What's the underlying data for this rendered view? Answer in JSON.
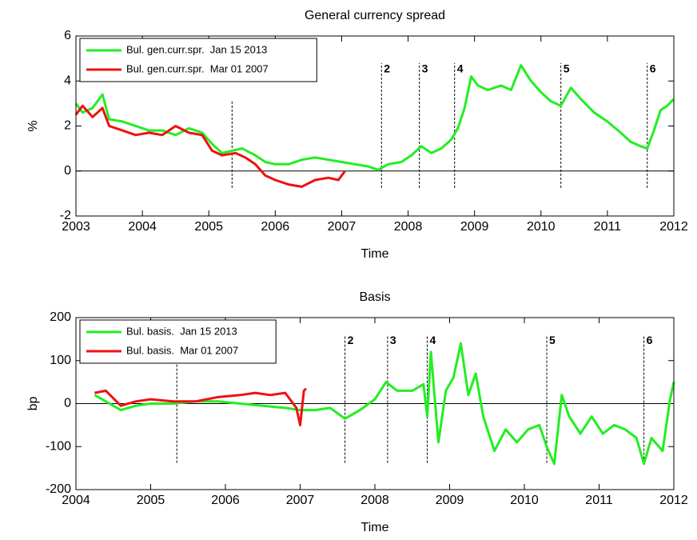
{
  "chart_data": [
    {
      "type": "line",
      "title": "General currency spread",
      "x_label": "Time",
      "y_label": "%",
      "xlim": [
        2003,
        2012
      ],
      "xticks": [
        2003,
        2004,
        2005,
        2006,
        2007,
        2008,
        2009,
        2010,
        2011,
        2012
      ],
      "ylim": [
        -2,
        6
      ],
      "yticks": [
        -2,
        0,
        2,
        4,
        6
      ],
      "legend": "upper left",
      "series": [
        {
          "name": "Bul. gen.curr.spr.  Jan 15 2013",
          "color": "#22ee22",
          "x": [
            2003.0,
            2003.1,
            2003.25,
            2003.4,
            2003.5,
            2003.7,
            2003.9,
            2004.1,
            2004.3,
            2004.5,
            2004.7,
            2004.9,
            2005.05,
            2005.2,
            2005.35,
            2005.5,
            2005.7,
            2005.85,
            2006.0,
            2006.2,
            2006.4,
            2006.6,
            2006.8,
            2007.0,
            2007.2,
            2007.4,
            2007.55,
            2007.7,
            2007.9,
            2008.05,
            2008.2,
            2008.35,
            2008.5,
            2008.65,
            2008.75,
            2008.85,
            2008.95,
            2009.05,
            2009.2,
            2009.4,
            2009.55,
            2009.7,
            2009.85,
            2010.0,
            2010.15,
            2010.3,
            2010.45,
            2010.6,
            2010.8,
            2011.0,
            2011.2,
            2011.35,
            2011.5,
            2011.6,
            2011.7,
            2011.8,
            2011.9,
            2012.0
          ],
          "values": [
            3.0,
            2.6,
            2.8,
            3.4,
            2.3,
            2.2,
            2.0,
            1.8,
            1.8,
            1.6,
            1.9,
            1.7,
            1.2,
            0.8,
            0.9,
            1.0,
            0.7,
            0.4,
            0.3,
            0.3,
            0.5,
            0.6,
            0.5,
            0.4,
            0.3,
            0.2,
            0.05,
            0.3,
            0.4,
            0.7,
            1.1,
            0.8,
            1.0,
            1.4,
            1.9,
            2.8,
            4.2,
            3.8,
            3.6,
            3.8,
            3.6,
            4.7,
            4.0,
            3.5,
            3.1,
            2.9,
            3.7,
            3.2,
            2.6,
            2.2,
            1.7,
            1.3,
            1.1,
            1.0,
            1.8,
            2.7,
            2.9,
            3.2
          ]
        },
        {
          "name": "Bul. gen.curr.spr.  Mar 01 2007",
          "color": "#ee1111",
          "x": [
            2003.0,
            2003.1,
            2003.25,
            2003.4,
            2003.5,
            2003.7,
            2003.9,
            2004.1,
            2004.3,
            2004.5,
            2004.7,
            2004.9,
            2005.05,
            2005.2,
            2005.4,
            2005.55,
            2005.7,
            2005.85,
            2006.0,
            2006.2,
            2006.4,
            2006.6,
            2006.8,
            2006.95,
            2007.05
          ],
          "values": [
            2.5,
            2.9,
            2.4,
            2.8,
            2.0,
            1.8,
            1.6,
            1.7,
            1.6,
            2.0,
            1.7,
            1.6,
            0.9,
            0.7,
            0.8,
            0.6,
            0.3,
            -0.2,
            -0.4,
            -0.6,
            -0.7,
            -0.4,
            -0.3,
            -0.4,
            0.0
          ]
        }
      ],
      "events": [
        {
          "x": 2005.35,
          "label": null,
          "y": [
            -0.75,
            3.1
          ]
        },
        {
          "x": 2007.6,
          "label": "2",
          "y": [
            -0.75,
            4.8
          ]
        },
        {
          "x": 2008.17,
          "label": "3",
          "y": [
            -0.75,
            4.8
          ]
        },
        {
          "x": 2008.7,
          "label": "4",
          "y": [
            -0.75,
            4.8
          ]
        },
        {
          "x": 2010.3,
          "label": "5",
          "y": [
            -0.75,
            4.8
          ]
        },
        {
          "x": 2011.6,
          "label": "6",
          "y": [
            -0.75,
            4.8
          ]
        }
      ]
    },
    {
      "type": "line",
      "title": "Basis",
      "x_label": "Time",
      "y_label": "bp",
      "xlim": [
        2004,
        2012
      ],
      "xticks": [
        2004,
        2005,
        2006,
        2007,
        2008,
        2009,
        2010,
        2011,
        2012
      ],
      "ylim": [
        -200,
        200
      ],
      "yticks": [
        -200,
        -100,
        0,
        100,
        200
      ],
      "legend": "upper left",
      "series": [
        {
          "name": "Bul. basis.  Jan 15 2013",
          "color": "#22ee22",
          "x": [
            2004.25,
            2004.4,
            2004.6,
            2004.8,
            2005.0,
            2005.3,
            2005.6,
            2005.9,
            2006.2,
            2006.5,
            2006.8,
            2007.0,
            2007.2,
            2007.4,
            2007.6,
            2007.8,
            2008.0,
            2008.15,
            2008.3,
            2008.5,
            2008.65,
            2008.7,
            2008.75,
            2008.85,
            2008.95,
            2009.05,
            2009.15,
            2009.25,
            2009.35,
            2009.45,
            2009.6,
            2009.75,
            2009.9,
            2010.05,
            2010.2,
            2010.3,
            2010.4,
            2010.5,
            2010.6,
            2010.75,
            2010.9,
            2011.05,
            2011.2,
            2011.35,
            2011.5,
            2011.6,
            2011.7,
            2011.85,
            2011.95,
            2012.0
          ],
          "values": [
            20,
            5,
            -15,
            -5,
            0,
            0,
            5,
            5,
            0,
            -5,
            -10,
            -15,
            -15,
            -10,
            -35,
            -15,
            10,
            50,
            30,
            30,
            45,
            -30,
            120,
            -90,
            30,
            60,
            140,
            20,
            70,
            -30,
            -110,
            -60,
            -90,
            -60,
            -50,
            -100,
            -140,
            20,
            -30,
            -70,
            -30,
            -70,
            -50,
            -60,
            -80,
            -140,
            -80,
            -110,
            10,
            50
          ]
        },
        {
          "name": "Bul. basis.  Mar 01 2007",
          "color": "#ee1111",
          "x": [
            2004.25,
            2004.4,
            2004.6,
            2004.8,
            2005.0,
            2005.3,
            2005.6,
            2005.9,
            2006.2,
            2006.4,
            2006.6,
            2006.8,
            2006.95,
            2007.0,
            2007.05,
            2007.08
          ],
          "values": [
            25,
            30,
            -5,
            5,
            10,
            5,
            5,
            15,
            20,
            25,
            20,
            25,
            -10,
            -50,
            30,
            35
          ]
        }
      ],
      "events": [
        {
          "x": 2005.35,
          "label": null,
          "y": [
            -138,
            140
          ]
        },
        {
          "x": 2007.6,
          "label": "2",
          "y": [
            -138,
            160
          ]
        },
        {
          "x": 2008.17,
          "label": "3",
          "y": [
            -138,
            160
          ]
        },
        {
          "x": 2008.7,
          "label": "4",
          "y": [
            -138,
            160
          ]
        },
        {
          "x": 2010.3,
          "label": "5",
          "y": [
            -138,
            160
          ]
        },
        {
          "x": 2011.6,
          "label": "6",
          "y": [
            -138,
            160
          ]
        }
      ]
    }
  ]
}
